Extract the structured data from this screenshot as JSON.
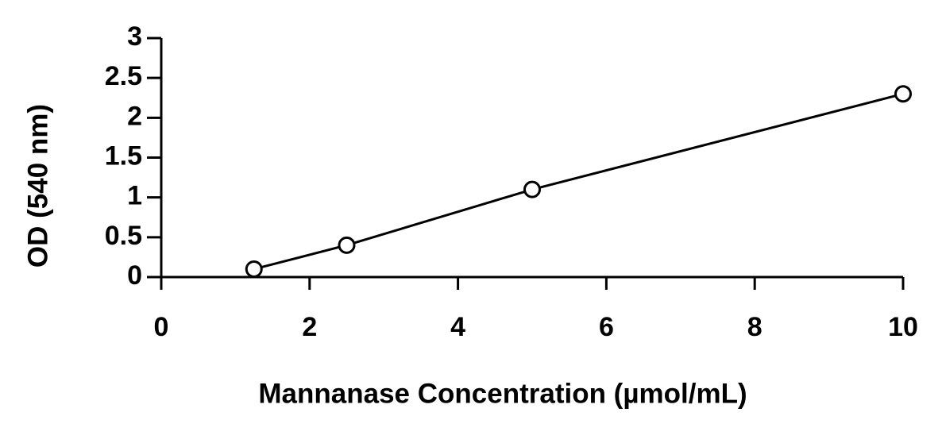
{
  "chart_data": {
    "type": "line",
    "x_label": "Mannanase Concentration (µmol/mL)",
    "y_label": "OD (540 nm)",
    "x": [
      1.25,
      2.5,
      5,
      10
    ],
    "values": [
      0.1,
      0.4,
      1.1,
      2.3
    ],
    "color": "#000000",
    "xlim": [
      0,
      10
    ],
    "xticks": [
      0,
      2,
      4,
      6,
      8,
      10
    ],
    "ylim": [
      0,
      3
    ],
    "yticks": [
      0,
      0.5,
      1,
      1.5,
      2,
      2.5,
      3
    ],
    "grid": false
  }
}
